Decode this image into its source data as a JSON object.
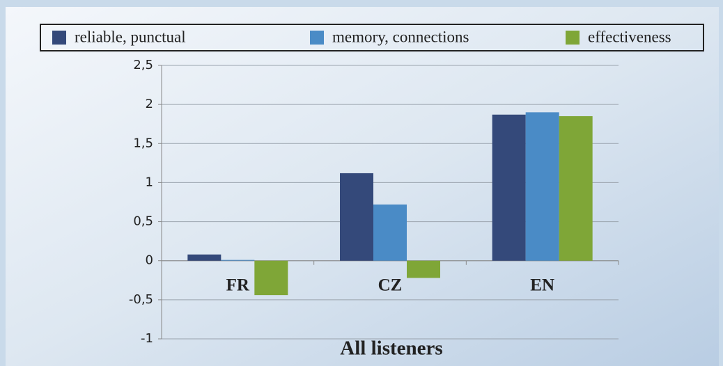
{
  "chart_data": {
    "type": "bar",
    "xlabel": "All listeners",
    "categories": [
      "FR",
      "CZ",
      "EN"
    ],
    "series": [
      {
        "name": "reliable, punctual",
        "color": "#34497a",
        "values": [
          0.08,
          1.12,
          1.87
        ]
      },
      {
        "name": "memory, connections",
        "color": "#4a8bc6",
        "values": [
          0.01,
          0.72,
          1.9
        ]
      },
      {
        "name": "effectiveness",
        "color": "#7fa637",
        "values": [
          -0.44,
          -0.22,
          1.85
        ]
      }
    ],
    "ylim": [
      -1,
      2.5
    ],
    "yticks": [
      -1,
      {
        "value": -0.5,
        "label": "-0,5"
      },
      0,
      {
        "value": 0.5,
        "label": "0,5"
      },
      1,
      {
        "value": 1.5,
        "label": "1,5"
      },
      2,
      {
        "value": 2.5,
        "label": "2,5"
      }
    ],
    "grid": true,
    "legend": "top"
  }
}
